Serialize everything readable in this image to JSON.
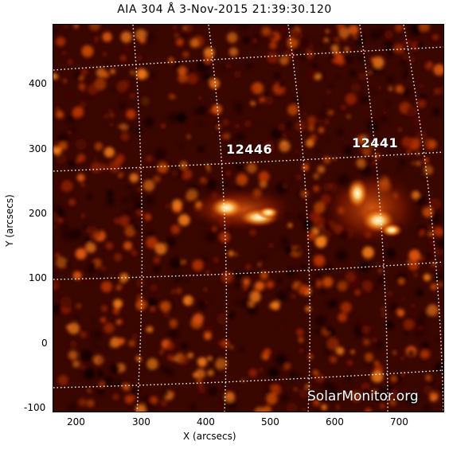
{
  "title": "AIA 304 Å   3-Nov-2015 21:39:30.120",
  "x_axis": {
    "label": "X (arcsecs)",
    "ticks": [
      "200",
      "300",
      "400",
      "500",
      "600",
      "700"
    ]
  },
  "y_axis": {
    "label": "Y (arcsecs)",
    "ticks": [
      "400",
      "300",
      "200",
      "100",
      "0",
      "-100"
    ]
  },
  "regions": [
    {
      "id": "12446",
      "label": "12446"
    },
    {
      "id": "12441",
      "label": "12441"
    }
  ],
  "watermark": "SolarMonitor.org",
  "colors": {
    "background": "#2a0300",
    "bright": "#fff6d8",
    "mid": "#d24a08",
    "grid": "#ffffff"
  }
}
